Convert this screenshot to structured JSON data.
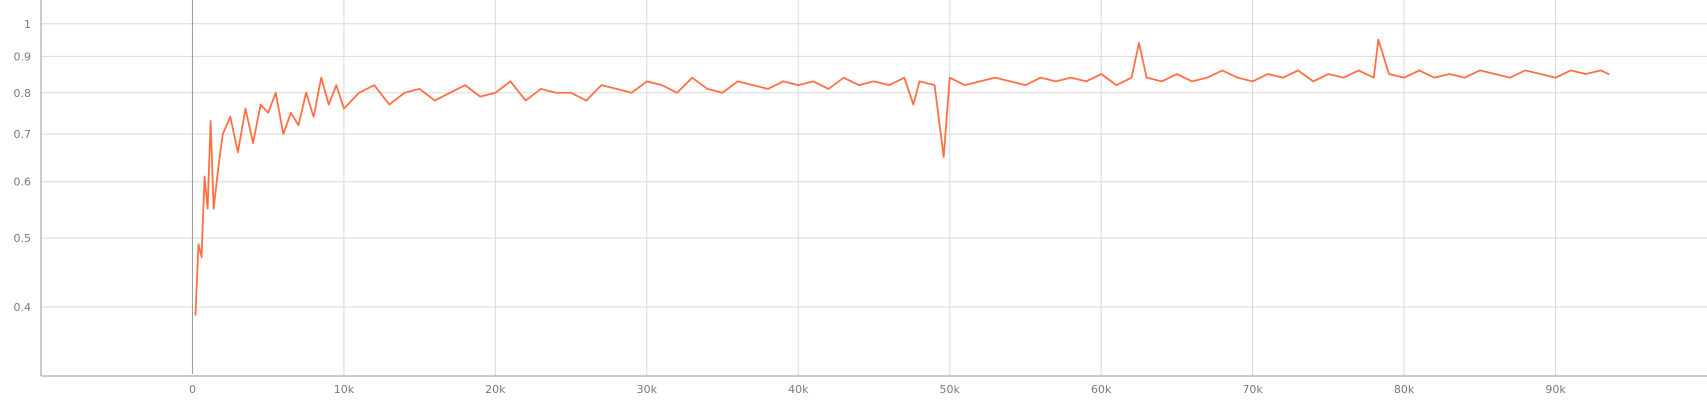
{
  "chart_data": {
    "type": "line",
    "title": "",
    "xlabel": "",
    "ylabel": "",
    "y_scale": "log",
    "grid": true,
    "xlim": [
      -10000,
      100000
    ],
    "ylim": [
      0.32,
      1.08
    ],
    "x_ticks": [
      0,
      10000,
      20000,
      30000,
      40000,
      50000,
      60000,
      70000,
      80000,
      90000
    ],
    "x_tick_labels": [
      "0",
      "10k",
      "20k",
      "30k",
      "40k",
      "50k",
      "60k",
      "70k",
      "80k",
      "90k"
    ],
    "y_ticks": [
      0.4,
      0.5,
      0.6,
      0.7,
      0.8,
      0.9,
      1.0
    ],
    "y_tick_labels": [
      "0.4",
      "0.5",
      "0.6",
      "0.7",
      "0.8",
      "0.9",
      "1"
    ],
    "series": [
      {
        "color": "#ff7043",
        "x": [
          200,
          400,
          600,
          800,
          1000,
          1200,
          1400,
          1600,
          1800,
          2000,
          2500,
          3000,
          3500,
          4000,
          4500,
          5000,
          5500,
          6000,
          6500,
          7000,
          7500,
          8000,
          8500,
          9000,
          9500,
          10000,
          11000,
          12000,
          13000,
          14000,
          15000,
          16000,
          17000,
          18000,
          19000,
          20000,
          21000,
          22000,
          23000,
          24000,
          25000,
          26000,
          27000,
          28000,
          29000,
          30000,
          31000,
          32000,
          33000,
          34000,
          35000,
          36000,
          37000,
          38000,
          39000,
          40000,
          41000,
          42000,
          43000,
          44000,
          45000,
          46000,
          47000,
          47600,
          48000,
          49000,
          49600,
          50000,
          51000,
          52000,
          53000,
          54000,
          55000,
          56000,
          57000,
          58000,
          59000,
          60000,
          61000,
          62000,
          62500,
          63000,
          64000,
          65000,
          66000,
          67000,
          68000,
          69000,
          70000,
          71000,
          72000,
          73000,
          74000,
          75000,
          76000,
          77000,
          78000,
          78300,
          79000,
          80000,
          81000,
          82000,
          83000,
          84000,
          85000,
          86000,
          87000,
          88000,
          89000,
          90000,
          91000,
          92000,
          93000,
          93500
        ],
        "y": [
          0.39,
          0.49,
          0.47,
          0.61,
          0.55,
          0.73,
          0.55,
          0.6,
          0.65,
          0.7,
          0.74,
          0.66,
          0.76,
          0.68,
          0.77,
          0.75,
          0.8,
          0.7,
          0.75,
          0.72,
          0.8,
          0.74,
          0.84,
          0.77,
          0.82,
          0.76,
          0.8,
          0.82,
          0.77,
          0.8,
          0.81,
          0.78,
          0.8,
          0.82,
          0.79,
          0.8,
          0.83,
          0.78,
          0.81,
          0.8,
          0.8,
          0.78,
          0.82,
          0.81,
          0.8,
          0.83,
          0.82,
          0.8,
          0.84,
          0.81,
          0.8,
          0.83,
          0.82,
          0.81,
          0.83,
          0.82,
          0.83,
          0.81,
          0.84,
          0.82,
          0.83,
          0.82,
          0.84,
          0.77,
          0.83,
          0.82,
          0.65,
          0.84,
          0.82,
          0.83,
          0.84,
          0.83,
          0.82,
          0.84,
          0.83,
          0.84,
          0.83,
          0.85,
          0.82,
          0.84,
          0.94,
          0.84,
          0.83,
          0.85,
          0.83,
          0.84,
          0.86,
          0.84,
          0.83,
          0.85,
          0.84,
          0.86,
          0.83,
          0.85,
          0.84,
          0.86,
          0.84,
          0.95,
          0.85,
          0.84,
          0.86,
          0.84,
          0.85,
          0.84,
          0.86,
          0.85,
          0.84,
          0.86,
          0.85,
          0.84,
          0.86,
          0.85,
          0.86,
          0.85
        ]
      }
    ]
  }
}
